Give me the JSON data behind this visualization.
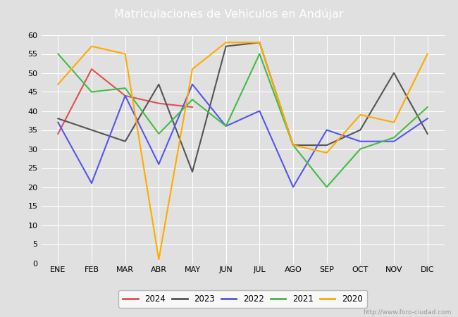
{
  "title": "Matriculaciones de Vehiculos en Andújar",
  "months": [
    "ENE",
    "FEB",
    "MAR",
    "ABR",
    "MAY",
    "JUN",
    "JUL",
    "AGO",
    "SEP",
    "OCT",
    "NOV",
    "DIC"
  ],
  "series": {
    "2024": [
      34,
      51,
      44,
      42,
      41,
      null,
      null,
      null,
      null,
      null,
      null,
      null
    ],
    "2023": [
      38,
      35,
      32,
      47,
      24,
      57,
      58,
      31,
      31,
      35,
      50,
      34
    ],
    "2022": [
      37,
      21,
      44,
      26,
      47,
      36,
      40,
      20,
      35,
      32,
      32,
      38
    ],
    "2021": [
      55,
      45,
      46,
      34,
      43,
      36,
      55,
      31,
      20,
      30,
      33,
      41
    ],
    "2020": [
      47,
      57,
      55,
      1,
      51,
      58,
      58,
      31,
      29,
      39,
      37,
      55
    ]
  },
  "colors": {
    "2024": "#e05050",
    "2023": "#555555",
    "2022": "#5555ee",
    "2021": "#44bb44",
    "2020": "#ffaa00"
  },
  "ylim": [
    0,
    60
  ],
  "yticks": [
    0,
    5,
    10,
    15,
    20,
    25,
    30,
    35,
    40,
    45,
    50,
    55,
    60
  ],
  "plot_bg": "#e0e0e0",
  "header_color": "#5599cc",
  "title_color": "white",
  "grid_color": "#ffffff",
  "watermark": "http://www.foro-ciudad.com",
  "legend_years": [
    "2024",
    "2023",
    "2022",
    "2021",
    "2020"
  ]
}
